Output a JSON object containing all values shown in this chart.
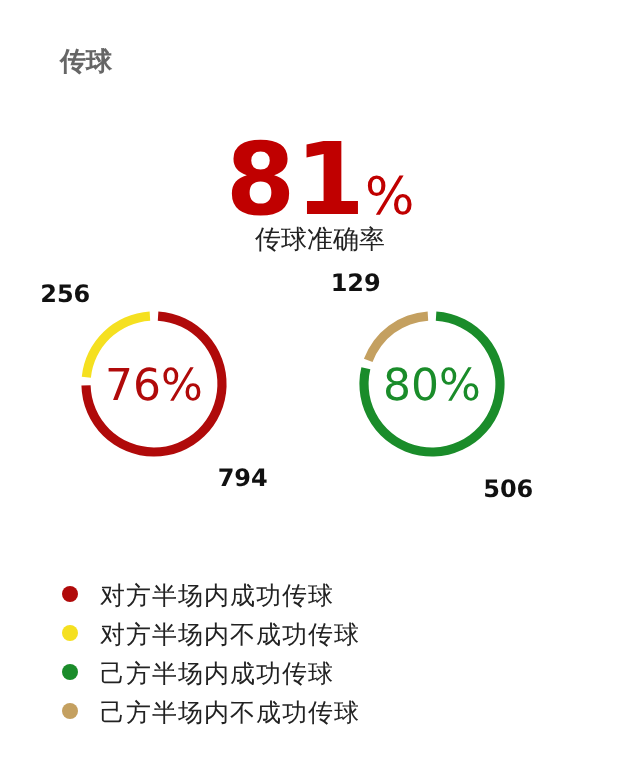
{
  "chart_data": [
    {
      "type": "other",
      "title": "传球",
      "annotations": [
        "81%",
        "传球准确率"
      ]
    },
    {
      "type": "donut",
      "categories": [
        "对方半场内成功传球",
        "对方半场内不成功传球"
      ],
      "values": [
        794,
        256
      ],
      "colors": [
        "#b00a0a",
        "#f5e020"
      ],
      "data_labels": true,
      "annotations": [
        "76%"
      ],
      "legend": "bottom"
    },
    {
      "type": "donut",
      "categories": [
        "己方半场内成功传球",
        "己方半场内不成功传球"
      ],
      "values": [
        506,
        129
      ],
      "colors": [
        "#1a8c2a",
        "#c4a060"
      ],
      "data_labels": true,
      "annotations": [
        "80%"
      ],
      "legend": "bottom"
    }
  ]
}
